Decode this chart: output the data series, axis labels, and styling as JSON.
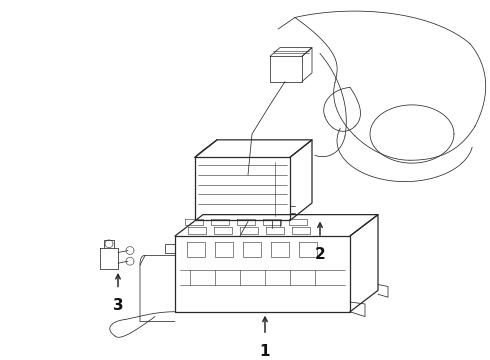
{
  "bg_color": "#ffffff",
  "line_color": "#2a2a2a",
  "figsize": [
    4.9,
    3.6
  ],
  "dpi": 100,
  "lw_main": 0.9,
  "lw_thin": 0.55,
  "lw_detail": 0.4
}
